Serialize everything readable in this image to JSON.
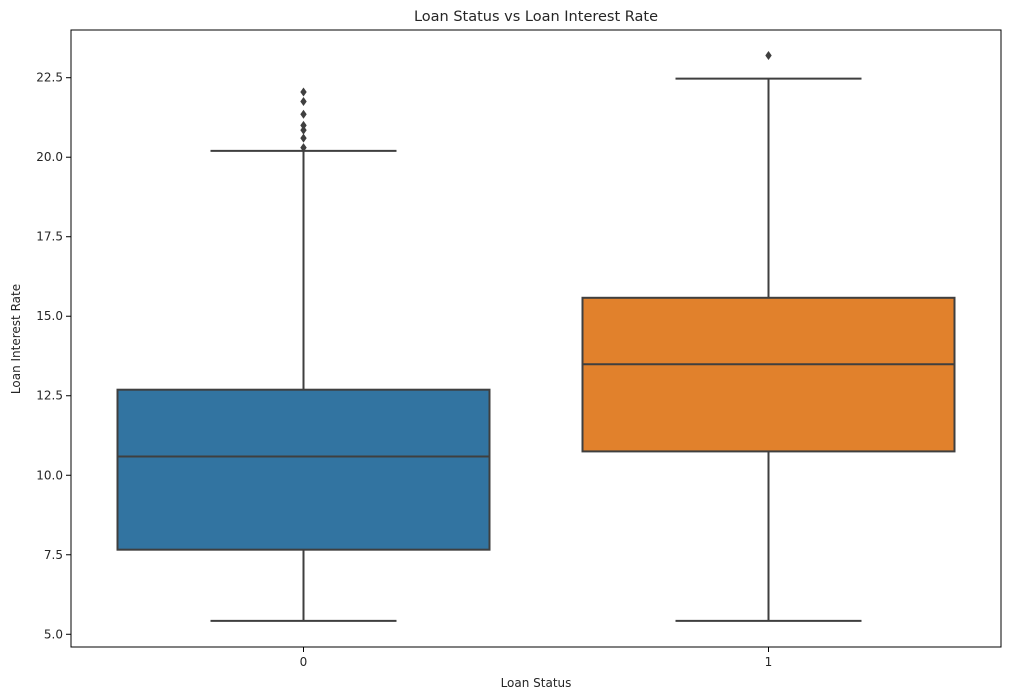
{
  "chart_data": {
    "type": "boxplot",
    "title": "Loan Status vs Loan Interest Rate",
    "xlabel": "Loan Status",
    "ylabel": "Loan Interest Rate",
    "categories": [
      "0",
      "1"
    ],
    "ylim": [
      4.6,
      24.0
    ],
    "yticks": [
      5.0,
      7.5,
      10.0,
      12.5,
      15.0,
      17.5,
      20.0,
      22.5
    ],
    "ytick_labels": [
      "5.0",
      "7.5",
      "10.0",
      "12.5",
      "15.0",
      "17.5",
      "20.0",
      "22.5"
    ],
    "grid": false,
    "legend": "none",
    "boxes": [
      {
        "category": "0",
        "whisker_low": 5.42,
        "q1": 7.66,
        "median": 10.59,
        "q3": 12.69,
        "whisker_high": 20.2,
        "outliers": [
          20.3,
          20.6,
          20.85,
          21.0,
          21.35,
          21.75,
          22.05
        ],
        "color": "#3274a1"
      },
      {
        "category": "1",
        "whisker_low": 5.42,
        "q1": 10.75,
        "median": 13.49,
        "q3": 15.58,
        "whisker_high": 22.47,
        "outliers": [
          23.2
        ],
        "color": "#e1812c"
      }
    ]
  }
}
